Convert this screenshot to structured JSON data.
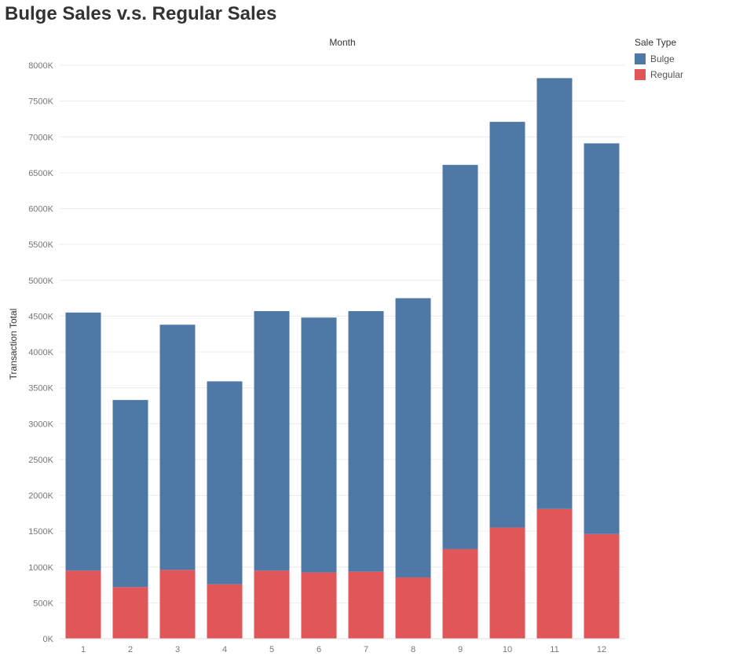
{
  "title": "Bulge Sales v.s. Regular Sales",
  "legend": {
    "title": "Sale Type",
    "items": [
      {
        "label": "Bulge",
        "color": "#4e79a7"
      },
      {
        "label": "Regular",
        "color": "#e15759"
      }
    ]
  },
  "chart_data": {
    "type": "bar",
    "stacked": true,
    "title": "Bulge Sales v.s. Regular Sales",
    "xlabel": "Month",
    "ylabel": "Transaction Total",
    "categories": [
      "1",
      "2",
      "3",
      "4",
      "5",
      "6",
      "7",
      "8",
      "9",
      "10",
      "11",
      "12"
    ],
    "series": [
      {
        "name": "Regular",
        "color": "#e15759",
        "values": [
          950,
          720,
          960,
          760,
          950,
          925,
          935,
          855,
          1250,
          1550,
          1810,
          1460
        ]
      },
      {
        "name": "Bulge",
        "color": "#4e79a7",
        "values": [
          3600,
          2610,
          3420,
          2830,
          3620,
          3555,
          3635,
          3895,
          5360,
          5660,
          6010,
          5450
        ]
      }
    ],
    "ylim": [
      0,
      8000
    ],
    "yticks": [
      0,
      500,
      1000,
      1500,
      2000,
      2500,
      3000,
      3500,
      4000,
      4500,
      5000,
      5500,
      6000,
      6500,
      7000,
      7500,
      8000
    ],
    "ytick_labels": [
      "0K",
      "500K",
      "1000K",
      "1500K",
      "2000K",
      "2500K",
      "3000K",
      "3500K",
      "4000K",
      "4500K",
      "5000K",
      "5500K",
      "6000K",
      "6500K",
      "7000K",
      "7500K",
      "8000K"
    ],
    "grid": true,
    "legend_position": "top-right"
  }
}
